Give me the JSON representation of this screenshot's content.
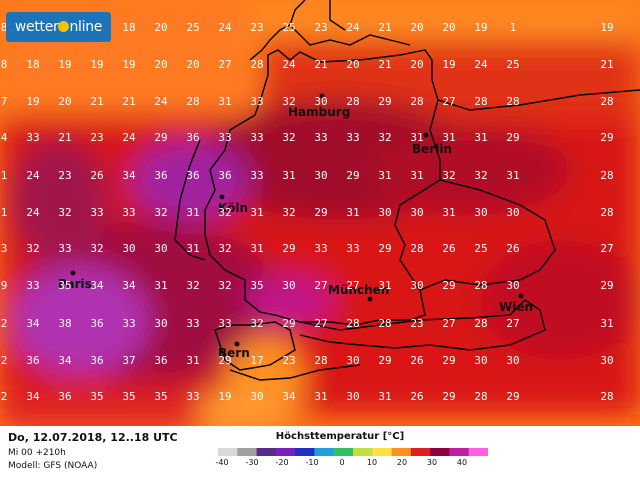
{
  "logo": {
    "text_a": "wetter",
    "text_b": "nline"
  },
  "footer": {
    "date": "Do, 12.07.2018, 12..18 UTC",
    "run": "Mi 00 +210h",
    "model": "Modell: GFS (NOAA)"
  },
  "legend": {
    "title": "Höchsttemperatur [°C]",
    "ticks": [
      "-40",
      "-30",
      "-20",
      "-10",
      "0",
      "10",
      "20",
      "30",
      "40"
    ],
    "colors": [
      "#d9d9d9",
      "#a0a0a0",
      "#5a2a8a",
      "#7a20c0",
      "#2030c0",
      "#1ea0e0",
      "#30c060",
      "#c0e040",
      "#ffe040",
      "#ff9020",
      "#e02020",
      "#900040",
      "#c020a0",
      "#ff60e0"
    ]
  },
  "cities": [
    "Hamburg",
    "Berlin",
    "Köln",
    "Paris",
    "München",
    "Wien",
    "Bern"
  ],
  "grid": {
    "rows": [
      [
        "8",
        "18",
        "18",
        "18",
        "18",
        "20",
        "25",
        "24",
        "23",
        "25",
        "23",
        "24",
        "21",
        "20",
        "20",
        "19",
        "1"
      ],
      [
        "8",
        "18",
        "19",
        "19",
        "19",
        "20",
        "20",
        "27",
        "28",
        "24",
        "21",
        "20",
        "21",
        "20",
        "19",
        "24",
        "25"
      ],
      [
        "7",
        "19",
        "20",
        "21",
        "21",
        "24",
        "28",
        "31",
        "33",
        "32",
        "30",
        "28",
        "29",
        "28",
        "27",
        "28",
        "28"
      ],
      [
        "4",
        "33",
        "21",
        "23",
        "24",
        "29",
        "36",
        "33",
        "33",
        "32",
        "33",
        "33",
        "32",
        "31",
        "31",
        "31",
        "29"
      ],
      [
        "1",
        "24",
        "23",
        "26",
        "34",
        "36",
        "36",
        "36",
        "33",
        "31",
        "30",
        "29",
        "31",
        "31",
        "32",
        "32",
        "31"
      ],
      [
        "1",
        "24",
        "32",
        "33",
        "33",
        "32",
        "31",
        "32",
        "31",
        "32",
        "29",
        "31",
        "30",
        "30",
        "31",
        "30",
        "30"
      ],
      [
        "3",
        "32",
        "33",
        "32",
        "30",
        "30",
        "31",
        "32",
        "31",
        "29",
        "33",
        "33",
        "29",
        "28",
        "26",
        "25",
        "26"
      ],
      [
        "9",
        "33",
        "35",
        "34",
        "34",
        "31",
        "32",
        "32",
        "35",
        "30",
        "27",
        "27",
        "31",
        "30",
        "29",
        "28",
        "30"
      ],
      [
        "2",
        "34",
        "38",
        "36",
        "33",
        "30",
        "33",
        "33",
        "32",
        "29",
        "27",
        "28",
        "28",
        "23",
        "27",
        "28",
        "27"
      ],
      [
        "2",
        "36",
        "34",
        "36",
        "37",
        "36",
        "31",
        "29",
        "17",
        "23",
        "28",
        "30",
        "29",
        "26",
        "29",
        "30",
        "30"
      ],
      [
        "2",
        "34",
        "36",
        "35",
        "35",
        "35",
        "33",
        "19",
        "30",
        "34",
        "31",
        "30",
        "31",
        "26",
        "29",
        "28",
        "29"
      ]
    ],
    "last_column": [
      "19",
      "21",
      "28",
      "29",
      "28",
      "28",
      "27",
      "29",
      "31",
      "30",
      "28"
    ]
  }
}
